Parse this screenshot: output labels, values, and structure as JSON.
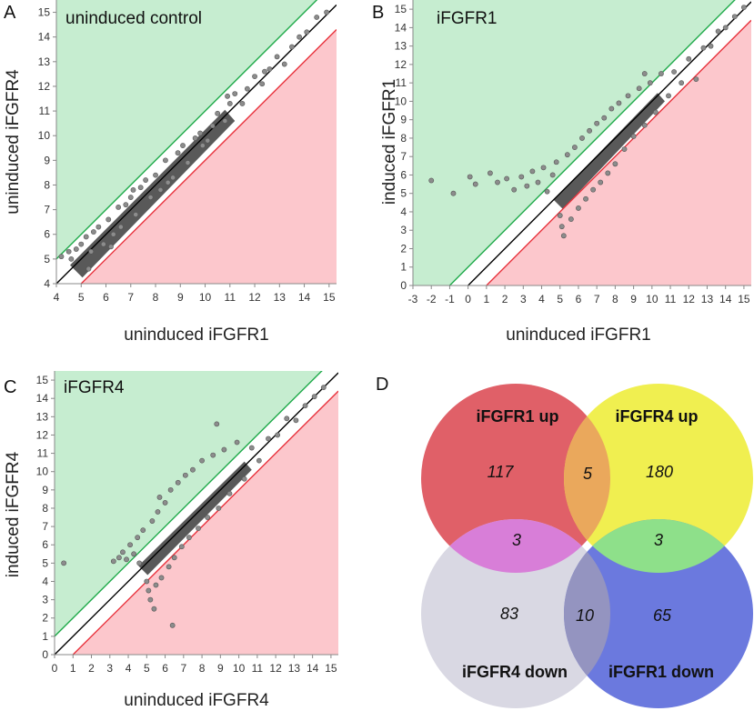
{
  "panel_labels": [
    "A",
    "B",
    "C",
    "D"
  ],
  "colors": {
    "up_region": "#c6edd0",
    "down_region": "#fcc7cc",
    "up_line": "#1faa4a",
    "down_line": "#e8323c",
    "diagonal": "#000000",
    "points": "#8c8c8c",
    "point_edge": "#555555",
    "dense": "#3c3c3c"
  },
  "chart_data": [
    {
      "type": "scatter",
      "panel": "A",
      "title": "uninduced control",
      "xlabel": "uninduced iFGFR1",
      "ylabel": "uninduced iFGFR4",
      "xlim": [
        4,
        15.3
      ],
      "ylim": [
        4,
        15.5
      ],
      "xticks": [
        4,
        5,
        6,
        7,
        8,
        9,
        10,
        11,
        12,
        13,
        14,
        15
      ],
      "yticks": [
        4,
        5,
        6,
        7,
        8,
        9,
        10,
        11,
        12,
        13,
        14,
        15
      ],
      "thresholds": {
        "up": 1,
        "down": -1
      },
      "dense_band": [
        [
          4.8,
          4.6
        ],
        [
          11,
          10.8
        ]
      ],
      "points": [
        [
          4.2,
          5.1
        ],
        [
          4.5,
          5.3
        ],
        [
          4.6,
          5.0
        ],
        [
          4.8,
          5.4
        ],
        [
          5.0,
          5.6
        ],
        [
          5.2,
          5.9
        ],
        [
          5.4,
          5.3
        ],
        [
          5.5,
          6.1
        ],
        [
          5.7,
          6.3
        ],
        [
          5.9,
          5.6
        ],
        [
          6.1,
          6.6
        ],
        [
          6.3,
          6.0
        ],
        [
          6.5,
          7.1
        ],
        [
          6.6,
          6.3
        ],
        [
          6.8,
          7.2
        ],
        [
          7.0,
          7.5
        ],
        [
          7.2,
          6.8
        ],
        [
          7.4,
          7.9
        ],
        [
          7.6,
          8.2
        ],
        [
          7.8,
          7.5
        ],
        [
          8.0,
          8.4
        ],
        [
          8.2,
          7.8
        ],
        [
          8.4,
          9.0
        ],
        [
          8.7,
          8.3
        ],
        [
          8.9,
          9.3
        ],
        [
          9.1,
          9.6
        ],
        [
          9.3,
          8.9
        ],
        [
          9.6,
          9.9
        ],
        [
          9.8,
          10.1
        ],
        [
          10.1,
          9.8
        ],
        [
          10.3,
          10.4
        ],
        [
          10.5,
          10.9
        ],
        [
          10.8,
          10.6
        ],
        [
          11.0,
          11.3
        ],
        [
          11.2,
          11.7
        ],
        [
          11.5,
          11.3
        ],
        [
          11.7,
          11.9
        ],
        [
          12.0,
          12.4
        ],
        [
          12.3,
          12.1
        ],
        [
          12.6,
          12.7
        ],
        [
          12.9,
          13.2
        ],
        [
          13.2,
          12.9
        ],
        [
          13.5,
          13.6
        ],
        [
          13.8,
          14.0
        ],
        [
          14.1,
          14.2
        ],
        [
          14.5,
          14.8
        ],
        [
          14.9,
          15.0
        ],
        [
          10.9,
          11.6
        ],
        [
          9.9,
          9.6
        ],
        [
          6.2,
          5.5
        ],
        [
          5.3,
          4.6
        ],
        [
          7.1,
          7.8
        ],
        [
          8.5,
          8.1
        ],
        [
          12.4,
          12.6
        ]
      ]
    },
    {
      "type": "scatter",
      "panel": "B",
      "title": "iFGFR1",
      "xlabel": "uninduced iFGFR1",
      "ylabel": "induced iFGFR1",
      "xlim": [
        -3,
        15.4
      ],
      "ylim": [
        0,
        15.5
      ],
      "xticks": [
        -3,
        -2,
        -1,
        0,
        1,
        2,
        3,
        4,
        5,
        6,
        7,
        8,
        9,
        10,
        11,
        12,
        13,
        14,
        15
      ],
      "yticks": [
        0,
        1,
        2,
        3,
        4,
        5,
        6,
        7,
        8,
        9,
        10,
        11,
        12,
        13,
        14,
        15
      ],
      "thresholds": {
        "up": 1,
        "down": -1
      },
      "dense_band": [
        [
          4.9,
          4.5
        ],
        [
          10.5,
          10.2
        ]
      ],
      "points": [
        [
          -2.0,
          5.7
        ],
        [
          -0.8,
          5.0
        ],
        [
          0.1,
          5.9
        ],
        [
          0.4,
          5.5
        ],
        [
          1.2,
          6.1
        ],
        [
          1.6,
          5.6
        ],
        [
          2.1,
          5.8
        ],
        [
          2.5,
          5.2
        ],
        [
          2.9,
          5.9
        ],
        [
          3.2,
          5.4
        ],
        [
          3.5,
          6.2
        ],
        [
          3.8,
          5.6
        ],
        [
          4.1,
          6.4
        ],
        [
          4.3,
          5.1
        ],
        [
          4.6,
          6.0
        ],
        [
          4.8,
          6.7
        ],
        [
          5.0,
          3.8
        ],
        [
          5.1,
          3.2
        ],
        [
          5.2,
          2.7
        ],
        [
          5.4,
          7.1
        ],
        [
          5.6,
          3.6
        ],
        [
          5.8,
          7.5
        ],
        [
          6.0,
          4.2
        ],
        [
          6.2,
          8.0
        ],
        [
          6.4,
          4.7
        ],
        [
          6.6,
          8.4
        ],
        [
          6.8,
          5.2
        ],
        [
          7.0,
          8.8
        ],
        [
          7.2,
          5.6
        ],
        [
          7.4,
          9.1
        ],
        [
          7.6,
          6.1
        ],
        [
          7.8,
          9.6
        ],
        [
          8.0,
          6.6
        ],
        [
          8.2,
          9.9
        ],
        [
          8.5,
          7.4
        ],
        [
          8.7,
          10.3
        ],
        [
          9.0,
          8.1
        ],
        [
          9.3,
          10.7
        ],
        [
          9.6,
          8.7
        ],
        [
          9.9,
          11.0
        ],
        [
          10.2,
          9.4
        ],
        [
          10.5,
          11.5
        ],
        [
          10.9,
          10.3
        ],
        [
          11.2,
          11.6
        ],
        [
          11.6,
          11.0
        ],
        [
          12.0,
          12.3
        ],
        [
          12.4,
          11.2
        ],
        [
          12.8,
          12.9
        ],
        [
          13.2,
          13.0
        ],
        [
          13.6,
          13.8
        ],
        [
          14.0,
          14.0
        ],
        [
          14.5,
          14.6
        ],
        [
          15.0,
          15.1
        ],
        [
          9.6,
          11.5
        ]
      ]
    },
    {
      "type": "scatter",
      "panel": "C",
      "title": "iFGFR4",
      "xlabel": "uninduced iFGFR4",
      "ylabel": "induced iFGFR4",
      "xlim": [
        0,
        15.4
      ],
      "ylim": [
        0,
        15.5
      ],
      "xticks": [
        0,
        1,
        2,
        3,
        4,
        5,
        6,
        7,
        8,
        9,
        10,
        11,
        12,
        13,
        14,
        15
      ],
      "yticks": [
        0,
        1,
        2,
        3,
        4,
        5,
        6,
        7,
        8,
        9,
        10,
        11,
        12,
        13,
        14,
        15
      ],
      "thresholds": {
        "up": 1,
        "down": -1
      },
      "dense_band": [
        [
          4.8,
          4.7
        ],
        [
          10.5,
          10.3
        ]
      ],
      "points": [
        [
          0.5,
          5.0
        ],
        [
          3.2,
          5.1
        ],
        [
          3.5,
          5.3
        ],
        [
          3.7,
          5.6
        ],
        [
          3.9,
          5.2
        ],
        [
          4.1,
          6.0
        ],
        [
          4.3,
          5.5
        ],
        [
          4.5,
          6.4
        ],
        [
          4.6,
          5.0
        ],
        [
          4.8,
          6.8
        ],
        [
          5.0,
          4.0
        ],
        [
          5.1,
          3.5
        ],
        [
          5.2,
          3.0
        ],
        [
          5.3,
          7.3
        ],
        [
          5.4,
          2.5
        ],
        [
          5.5,
          3.8
        ],
        [
          5.6,
          7.8
        ],
        [
          5.8,
          4.2
        ],
        [
          6.0,
          8.3
        ],
        [
          6.2,
          4.8
        ],
        [
          6.3,
          9.0
        ],
        [
          6.5,
          5.3
        ],
        [
          6.7,
          9.4
        ],
        [
          6.9,
          5.9
        ],
        [
          7.1,
          9.8
        ],
        [
          7.3,
          6.4
        ],
        [
          7.5,
          10.1
        ],
        [
          7.8,
          6.9
        ],
        [
          8.0,
          10.6
        ],
        [
          8.3,
          7.5
        ],
        [
          8.6,
          10.9
        ],
        [
          8.9,
          8.0
        ],
        [
          9.2,
          11.2
        ],
        [
          9.5,
          8.8
        ],
        [
          9.9,
          11.6
        ],
        [
          10.3,
          9.6
        ],
        [
          10.7,
          11.3
        ],
        [
          11.1,
          10.6
        ],
        [
          11.6,
          11.8
        ],
        [
          12.1,
          12.0
        ],
        [
          12.6,
          12.9
        ],
        [
          13.1,
          12.8
        ],
        [
          13.6,
          13.6
        ],
        [
          14.1,
          14.1
        ],
        [
          14.6,
          14.6
        ],
        [
          8.8,
          12.6
        ],
        [
          6.4,
          1.6
        ],
        [
          5.7,
          8.6
        ]
      ]
    },
    {
      "type": "venn",
      "panel": "D",
      "sets": [
        {
          "name": "iFGFR1 up",
          "color": "#e06068"
        },
        {
          "name": "iFGFR4 up",
          "color": "#f0ef50"
        },
        {
          "name": "iFGFR4 down",
          "color": "#d9d8e3"
        },
        {
          "name": "iFGFR1 down",
          "color": "#6b79de"
        }
      ],
      "regions": [
        {
          "sets": [
            "iFGFR1 up"
          ],
          "value": 117
        },
        {
          "sets": [
            "iFGFR1 up",
            "iFGFR4 up"
          ],
          "value": 5,
          "color": "#eaa85c"
        },
        {
          "sets": [
            "iFGFR4 up"
          ],
          "value": 180
        },
        {
          "sets": [
            "iFGFR1 up",
            "iFGFR4 down"
          ],
          "value": 3,
          "color": "#d87ed8"
        },
        {
          "sets": [
            "iFGFR4 up",
            "iFGFR1 down"
          ],
          "value": 3,
          "color": "#8ee08a"
        },
        {
          "sets": [
            "iFGFR4 down"
          ],
          "value": 83
        },
        {
          "sets": [
            "iFGFR4 down",
            "iFGFR1 down"
          ],
          "value": 10,
          "color": "#9494c0"
        },
        {
          "sets": [
            "iFGFR1 down"
          ],
          "value": 65
        }
      ]
    }
  ]
}
